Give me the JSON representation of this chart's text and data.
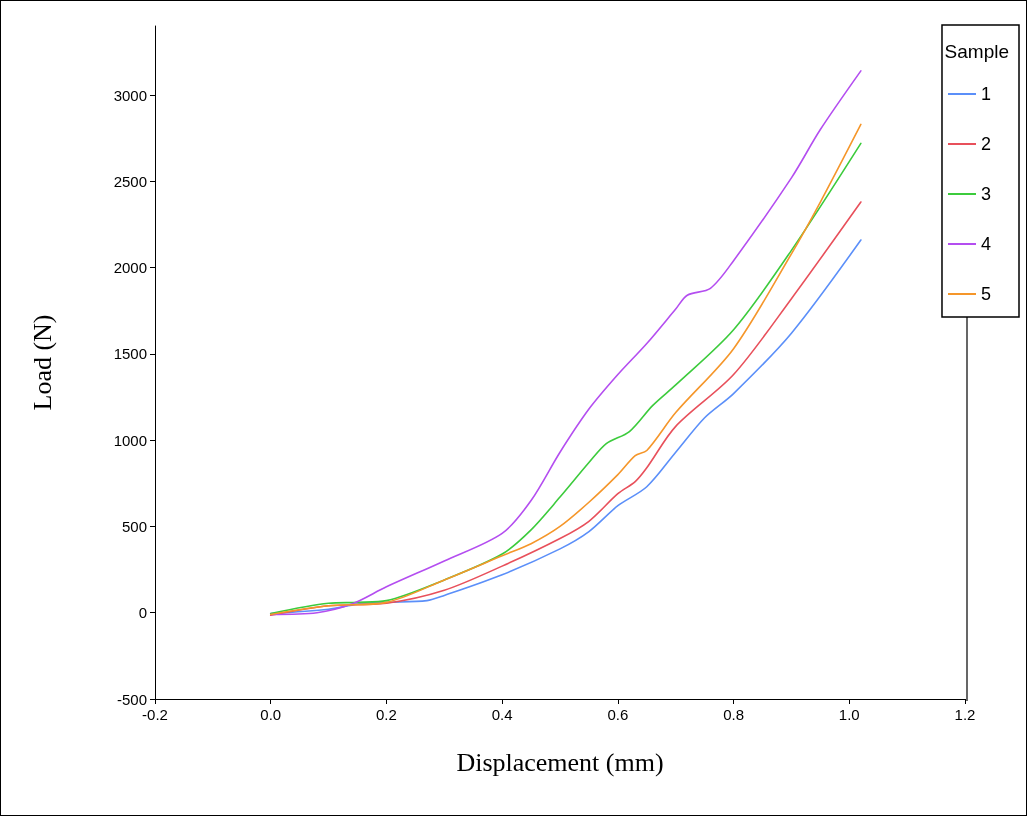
{
  "chart_data": {
    "type": "line",
    "xlabel": "Displacement (mm)",
    "ylabel": "Load (N)",
    "legend_title": "Sample",
    "legend": "top right",
    "grid": false,
    "marker": "none",
    "line_style": "solid",
    "xlim": [
      -0.2,
      1.2
    ],
    "xticks": [
      -0.2,
      {
        "value": 0,
        "label": "0.0"
      },
      0.2,
      0.4,
      0.6,
      0.8,
      {
        "value": 1,
        "label": "1.0"
      },
      1.2
    ],
    "ylim": [
      -500,
      3400
    ],
    "yticks": [
      -500,
      0,
      500,
      1000,
      1500,
      2000,
      2500,
      3000
    ],
    "series": [
      {
        "name": "1",
        "color": "#5b8ff9",
        "x": [
          0,
          0.1,
          0.15,
          0.2,
          0.27,
          0.3,
          0.4,
          0.5,
          0.55,
          0.6,
          0.65,
          0.7,
          0.75,
          0.8,
          0.9,
          1.02
        ],
        "values": [
          -5,
          20,
          50,
          60,
          70,
          100,
          220,
          370,
          470,
          620,
          730,
          930,
          1130,
          1270,
          1620,
          2160
        ]
      },
      {
        "name": "2",
        "color": "#e8505b",
        "x": [
          0,
          0.1,
          0.2,
          0.3,
          0.4,
          0.5,
          0.55,
          0.6,
          0.63,
          0.65,
          0.7,
          0.8,
          0.9,
          1.02
        ],
        "values": [
          -15,
          40,
          55,
          130,
          270,
          430,
          530,
          690,
          760,
          840,
          1080,
          1380,
          1820,
          2380
        ]
      },
      {
        "name": "3",
        "color": "#3ccb3c",
        "x": [
          0,
          0.1,
          0.15,
          0.2,
          0.3,
          0.4,
          0.45,
          0.5,
          0.55,
          0.58,
          0.62,
          0.66,
          0.7,
          0.8,
          0.9,
          1.02
        ],
        "values": [
          -5,
          55,
          60,
          70,
          190,
          340,
          480,
          670,
          870,
          980,
          1050,
          1200,
          1320,
          1640,
          2100,
          2720
        ]
      },
      {
        "name": "4",
        "color": "#b44ef0",
        "x": [
          0,
          0.08,
          0.14,
          0.2,
          0.3,
          0.4,
          0.45,
          0.5,
          0.55,
          0.6,
          0.65,
          0.7,
          0.72,
          0.76,
          0.8,
          0.9,
          0.95,
          1.02
        ],
        "values": [
          -10,
          0,
          50,
          150,
          300,
          460,
          650,
          930,
          1180,
          1380,
          1560,
          1760,
          1840,
          1880,
          2040,
          2520,
          2800,
          3140
        ]
      },
      {
        "name": "5",
        "color": "#f5962a",
        "x": [
          0,
          0.1,
          0.2,
          0.3,
          0.4,
          0.45,
          0.5,
          0.55,
          0.6,
          0.63,
          0.65,
          0.7,
          0.8,
          0.9,
          0.95,
          1.02
        ],
        "values": [
          -10,
          40,
          60,
          190,
          330,
          400,
          500,
          640,
          800,
          910,
          940,
          1160,
          1530,
          2080,
          2380,
          2830
        ]
      }
    ]
  }
}
